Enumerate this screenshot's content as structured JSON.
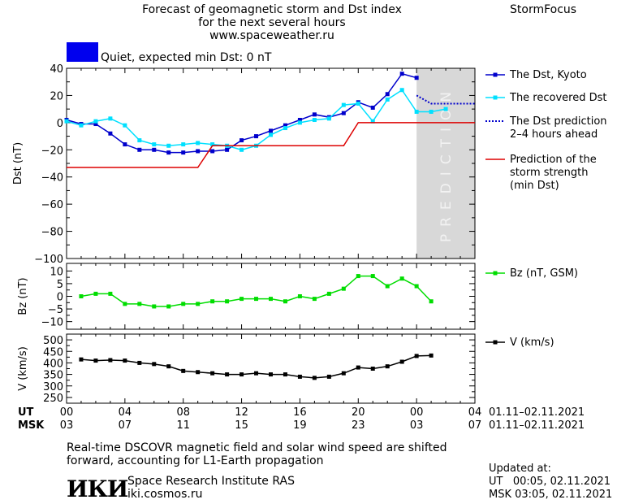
{
  "header": {
    "title_line1": "Forecast of geomagnetic storm and Dst index",
    "title_line2": "for the next several hours",
    "website": "www.spaceweather.ru",
    "brand": "StormFocus",
    "status_text": "Quiet, expected min Dst: 0 nT",
    "status_color": "#0000ff"
  },
  "footer": {
    "note_line1": "Real-time DSCOVR magnetic field and solar wind speed are shifted",
    "note_line2": "forward, accounting for L1-Earth propagation",
    "institute": "Space Research Institute RAS",
    "institute_url": "iki.cosmos.ru",
    "logo_text": "ИКИ",
    "updated_label": "Updated at:",
    "updated_ut": "UT   00:05, 02.11.2021",
    "updated_msk": "MSK 03:05, 02.11.2021"
  },
  "chart_data": {
    "type": "line",
    "x_unit": "hours",
    "x_range": [
      0,
      28
    ],
    "prediction_band": [
      24,
      28
    ],
    "prediction_label": "PREDICTION",
    "ut_label": "UT",
    "msk_label": "MSK",
    "ut_ticks": [
      "00",
      "04",
      "08",
      "12",
      "16",
      "20",
      "00",
      "04"
    ],
    "msk_ticks": [
      "03",
      "07",
      "11",
      "15",
      "19",
      "23",
      "03",
      "07"
    ],
    "date_range_ut": "01.11–02.11.2021",
    "date_range_msk": "01.11–02.11.2021",
    "panels": [
      {
        "id": "dst",
        "ylabel": "Dst (nT)",
        "ylim": [
          -100,
          40
        ],
        "yticks": [
          40,
          20,
          0,
          -20,
          -40,
          -60,
          -80,
          -100
        ],
        "series": [
          {
            "name": "The Dst, Kyoto",
            "color": "#0000cc",
            "marker": "square",
            "x": [
              0,
              1,
              2,
              3,
              4,
              5,
              6,
              7,
              8,
              9,
              10,
              11,
              12,
              13,
              14,
              15,
              16,
              17,
              18,
              19,
              20,
              21,
              22,
              23,
              24
            ],
            "values": [
              2,
              -1,
              -1,
              -8,
              -16,
              -20,
              -20,
              -22,
              -22,
              -21,
              -21,
              -20,
              -13,
              -10,
              -6,
              -2,
              2,
              6,
              4,
              7,
              15,
              11,
              21,
              36,
              33
            ]
          },
          {
            "name": "The recovered Dst",
            "color": "#00e0ff",
            "marker": "square",
            "x": [
              0,
              1,
              2,
              3,
              4,
              5,
              6,
              7,
              8,
              9,
              10,
              11,
              12,
              13,
              14,
              15,
              16,
              17,
              18,
              19,
              20,
              21,
              22,
              23,
              24,
              25,
              26
            ],
            "values": [
              1,
              -2,
              1,
              3,
              -2,
              -13,
              -16,
              -17,
              -16,
              -15,
              -16,
              -17,
              -20,
              -17,
              -9,
              -4,
              0,
              2,
              3,
              13,
              14,
              1,
              17,
              24,
              8,
              8,
              10
            ]
          },
          {
            "name": "The Dst prediction",
            "name_line2": "2–4 hours ahead",
            "color": "#0000cc",
            "marker": "dotted",
            "x": [
              24,
              25,
              26,
              27,
              28
            ],
            "values": [
              20,
              14,
              14,
              14,
              14
            ]
          },
          {
            "name": "Prediction of the",
            "name_line2": "storm strength",
            "name_line3": "(min Dst)",
            "color": "#dd0000",
            "marker": "step",
            "x": [
              0,
              9,
              10,
              19,
              20,
              28
            ],
            "values": [
              -33,
              -33,
              -17,
              -17,
              0,
              0
            ]
          }
        ]
      },
      {
        "id": "bz",
        "ylabel": "Bz (nT)",
        "ylim": [
          -13,
          13
        ],
        "yticks": [
          10,
          5,
          0,
          -5,
          -10
        ],
        "series": [
          {
            "name": "Bz (nT, GSM)",
            "color": "#00dd00",
            "marker": "square",
            "x": [
              1,
              2,
              3,
              4,
              5,
              6,
              7,
              8,
              9,
              10,
              11,
              12,
              13,
              14,
              15,
              16,
              17,
              18,
              19,
              20,
              21,
              22,
              23,
              24,
              25
            ],
            "values": [
              0,
              1,
              1,
              -3,
              -3,
              -4,
              -4,
              -3,
              -3,
              -2,
              -2,
              -1,
              -1,
              -1,
              -2,
              0,
              -1,
              1,
              3,
              8,
              8,
              4,
              7,
              4,
              -2
            ]
          }
        ]
      },
      {
        "id": "v",
        "ylabel": "V (km/s)",
        "ylim": [
          225,
          525
        ],
        "yticks": [
          500,
          450,
          400,
          350,
          300,
          250
        ],
        "series": [
          {
            "name": "V (km/s)",
            "color": "#000000",
            "marker": "square",
            "x": [
              1,
              2,
              3,
              4,
              5,
              6,
              7,
              8,
              9,
              10,
              11,
              12,
              13,
              14,
              15,
              16,
              17,
              18,
              19,
              20,
              21,
              22,
              23,
              24,
              25
            ],
            "values": [
              415,
              410,
              412,
              410,
              400,
              395,
              385,
              365,
              360,
              355,
              350,
              350,
              355,
              350,
              350,
              340,
              335,
              340,
              355,
              380,
              375,
              385,
              405,
              430,
              432
            ]
          }
        ]
      }
    ]
  }
}
